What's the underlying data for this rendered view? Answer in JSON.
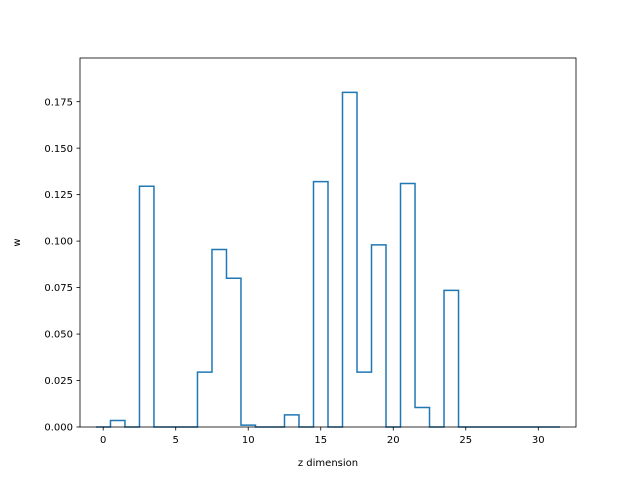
{
  "chart_data": {
    "type": "step-histogram",
    "title": "",
    "xlabel": "z dimension",
    "ylabel": "w",
    "xlim": [
      -1.6,
      32.6
    ],
    "ylim": [
      0,
      0.1985
    ],
    "bin_start": -0.5,
    "bin_width": 1,
    "x": [
      0,
      1,
      2,
      3,
      4,
      5,
      6,
      7,
      8,
      9,
      10,
      11,
      12,
      13,
      14,
      15,
      16,
      17,
      18,
      19,
      20,
      21,
      22,
      23,
      24,
      25,
      26,
      27,
      28,
      29,
      30,
      31
    ],
    "values": [
      0.0,
      0.0035,
      0.0,
      0.1295,
      0.0,
      0.0,
      0.0,
      0.0295,
      0.0955,
      0.08,
      0.001,
      0.0,
      0.0,
      0.0065,
      0.0,
      0.132,
      0.0,
      0.18,
      0.0295,
      0.098,
      0.0,
      0.131,
      0.0105,
      0.0,
      0.0735,
      0.0,
      0.0,
      0.0,
      0.0,
      0.0,
      0.0,
      0.0
    ],
    "xticks": [
      0,
      5,
      10,
      15,
      20,
      25,
      30
    ],
    "xtick_labels": [
      "0",
      "5",
      "10",
      "15",
      "20",
      "25",
      "30"
    ],
    "yticks": [
      0,
      0.025,
      0.05,
      0.075,
      0.1,
      0.125,
      0.15,
      0.175
    ],
    "ytick_labels": [
      "0.000",
      "0.025",
      "0.050",
      "0.075",
      "0.100",
      "0.125",
      "0.150",
      "0.175"
    ],
    "grid": false,
    "legend": "none",
    "line_color": "#1f77b4"
  }
}
